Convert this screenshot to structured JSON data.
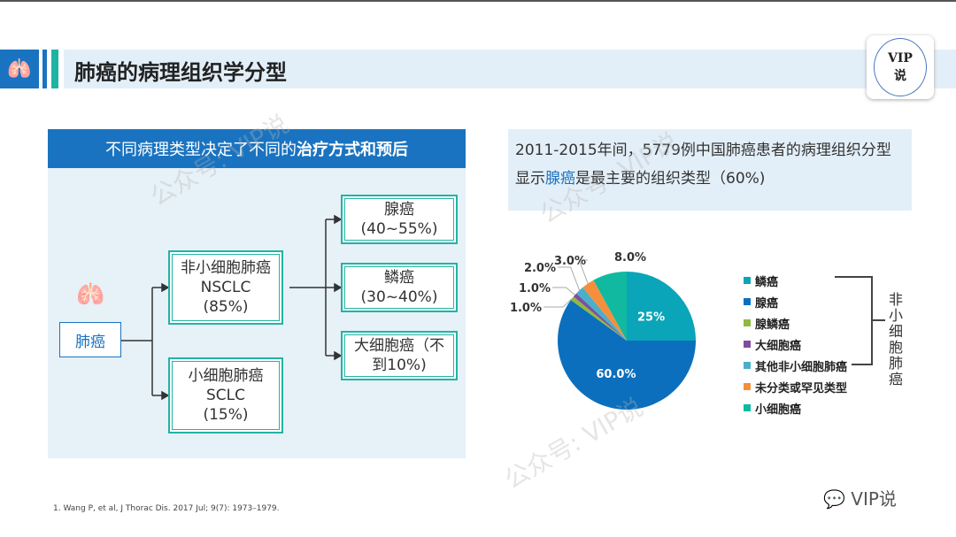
{
  "header": {
    "title": "肺癌的病理组织学分型",
    "badge_line1": "VIP",
    "badge_line2": "说"
  },
  "left": {
    "heading_plain": "不同病理类型决定了不同的",
    "heading_bold": "治疗方式和预后",
    "root": "肺癌",
    "nsclc": [
      "非小细胞肺癌",
      "NSCLC",
      "(85%)"
    ],
    "sclc": [
      "小细胞肺癌",
      "SCLC",
      "(15%)"
    ],
    "adeno": [
      "腺癌",
      "(40~55%)"
    ],
    "squamous": [
      "鳞癌",
      "(30~40%)"
    ],
    "large": [
      "大细胞癌（不",
      "到10%)"
    ]
  },
  "right": {
    "line1": "2011-2015年间，5779例中国肺癌患者的病理组织分型",
    "line2_pre": "显示",
    "line2_hl": "腺癌",
    "line2_post": "是最主要的组织类型（60%)"
  },
  "chart_data": {
    "type": "pie",
    "labels": [
      "鳞癌",
      "腺癌",
      "腺鳞癌",
      "大细胞癌",
      "其他非小细胞肺癌",
      "未分类或罕见类型",
      "小细胞癌"
    ],
    "values": [
      25,
      60,
      1,
      1,
      2,
      3,
      8
    ],
    "value_labels": [
      "25%",
      "60.0%",
      "1.0%",
      "1.0%",
      "2.0%",
      "3.0%",
      "8.0%"
    ],
    "colors": [
      "#0aa5b8",
      "#0b6fbd",
      "#8fb93e",
      "#7c4fa0",
      "#4aafc9",
      "#f58f3c",
      "#10b9a0"
    ],
    "bracket_label": "非小细胞肺癌",
    "legend_position": "right"
  },
  "footer": {
    "reference": "1. Wang P, et al, J Thorac Dis. 2017 Jul; 9(7): 1973–1979.",
    "wechat": "VIP说"
  },
  "watermark": "公众号: VIP说"
}
